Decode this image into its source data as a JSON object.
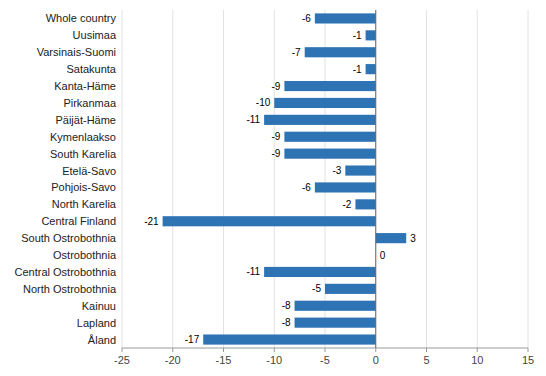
{
  "chart_data": {
    "type": "bar",
    "orientation": "horizontal",
    "categories": [
      "Whole country",
      "Uusimaa",
      "Varsinais-Suomi",
      "Satakunta",
      "Kanta-Häme",
      "Pirkanmaa",
      "Päijät-Häme",
      "Kymenlaakso",
      "South Karelia",
      "Etelä-Savo",
      "Pohjois-Savo",
      "North Karelia",
      "Central Finland",
      "South Ostrobothnia",
      "Ostrobothnia",
      "Central Ostrobothnia",
      "North Ostrobothnia",
      "Kainuu",
      "Lapland",
      "Åland"
    ],
    "values": [
      -6,
      -1,
      -7,
      -1,
      -9,
      -10,
      -11,
      -9,
      -9,
      -3,
      -6,
      -2,
      -21,
      3,
      0,
      -11,
      -5,
      -8,
      -8,
      -17
    ],
    "color": "#2E74B5",
    "xlim": [
      -25,
      15
    ],
    "xticks": [
      -25,
      -20,
      -15,
      -10,
      -5,
      0,
      5,
      10,
      15
    ],
    "grid": true,
    "data_labels": true
  }
}
